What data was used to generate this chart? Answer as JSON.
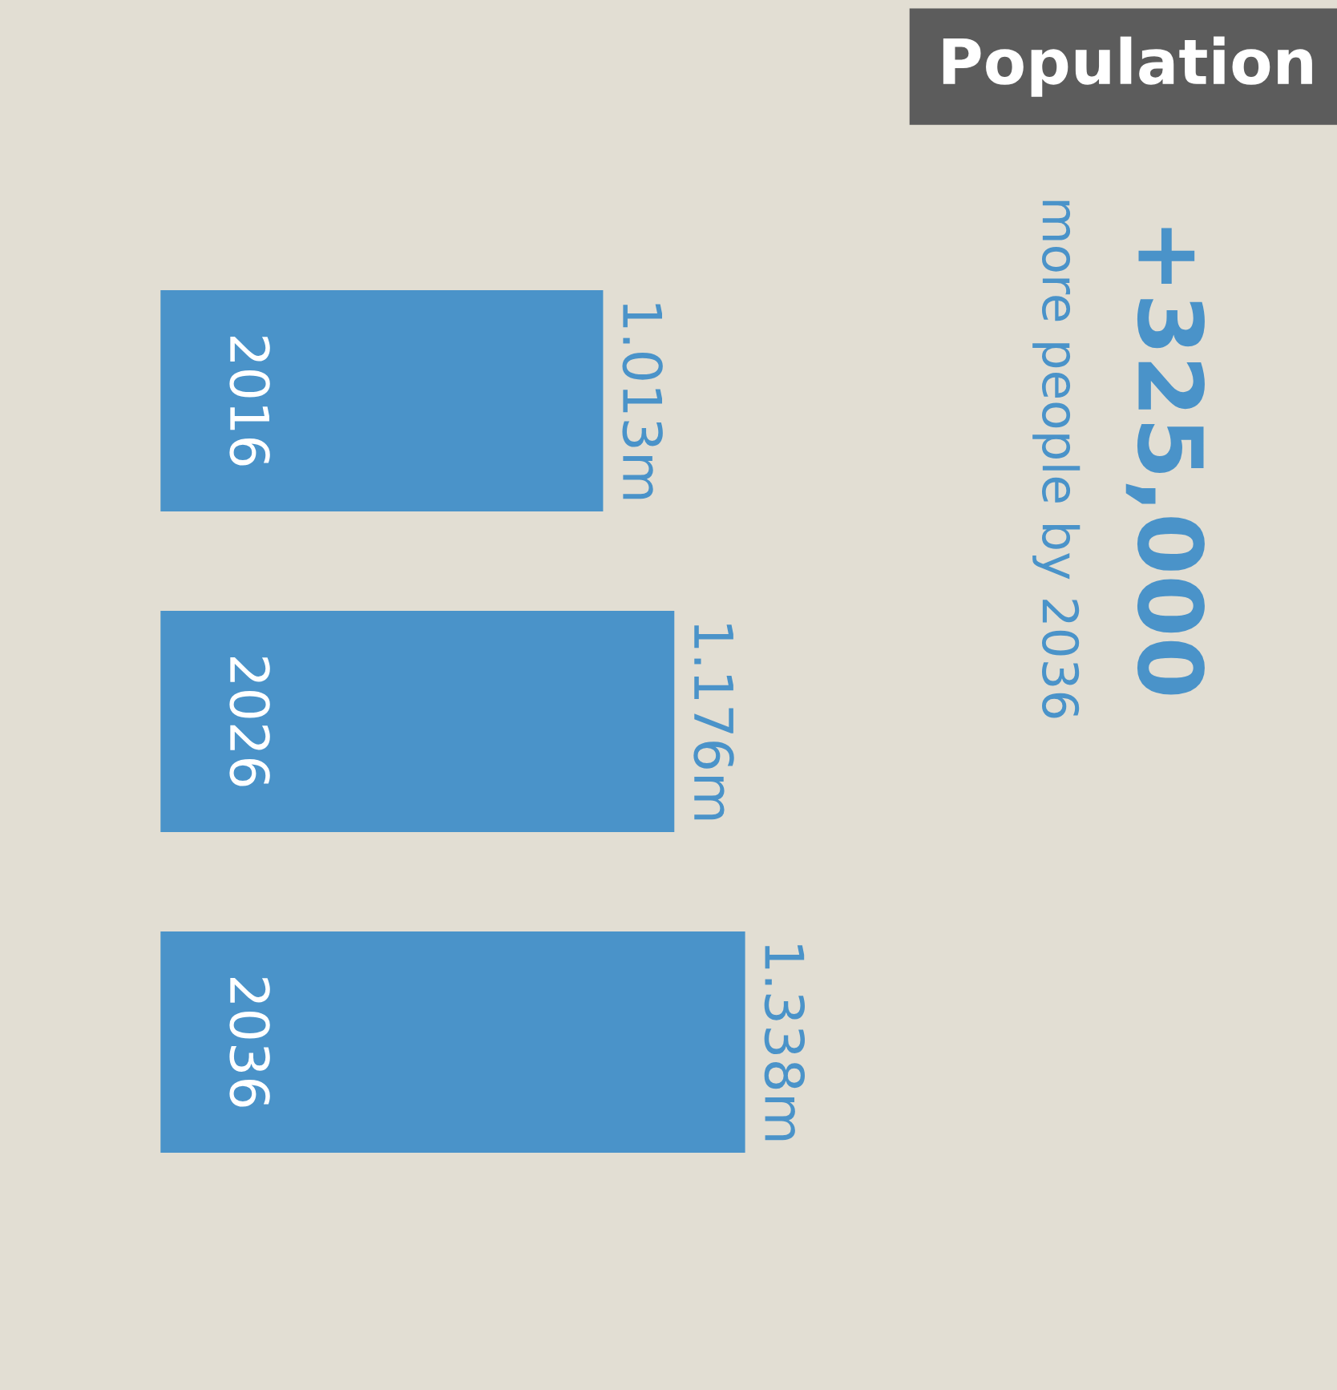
{
  "chart_data": {
    "type": "bar",
    "orientation": "horizontal",
    "title": "Population",
    "categories": [
      "2016",
      "2026",
      "2036"
    ],
    "values": [
      1.013,
      1.176,
      1.338
    ],
    "value_labels": [
      "1.013m",
      "1.176m",
      "1.338m"
    ],
    "color": "#4a93c9",
    "tick_labels": "y",
    "annotations": [
      "+325,000",
      "more people by 2036"
    ]
  }
}
